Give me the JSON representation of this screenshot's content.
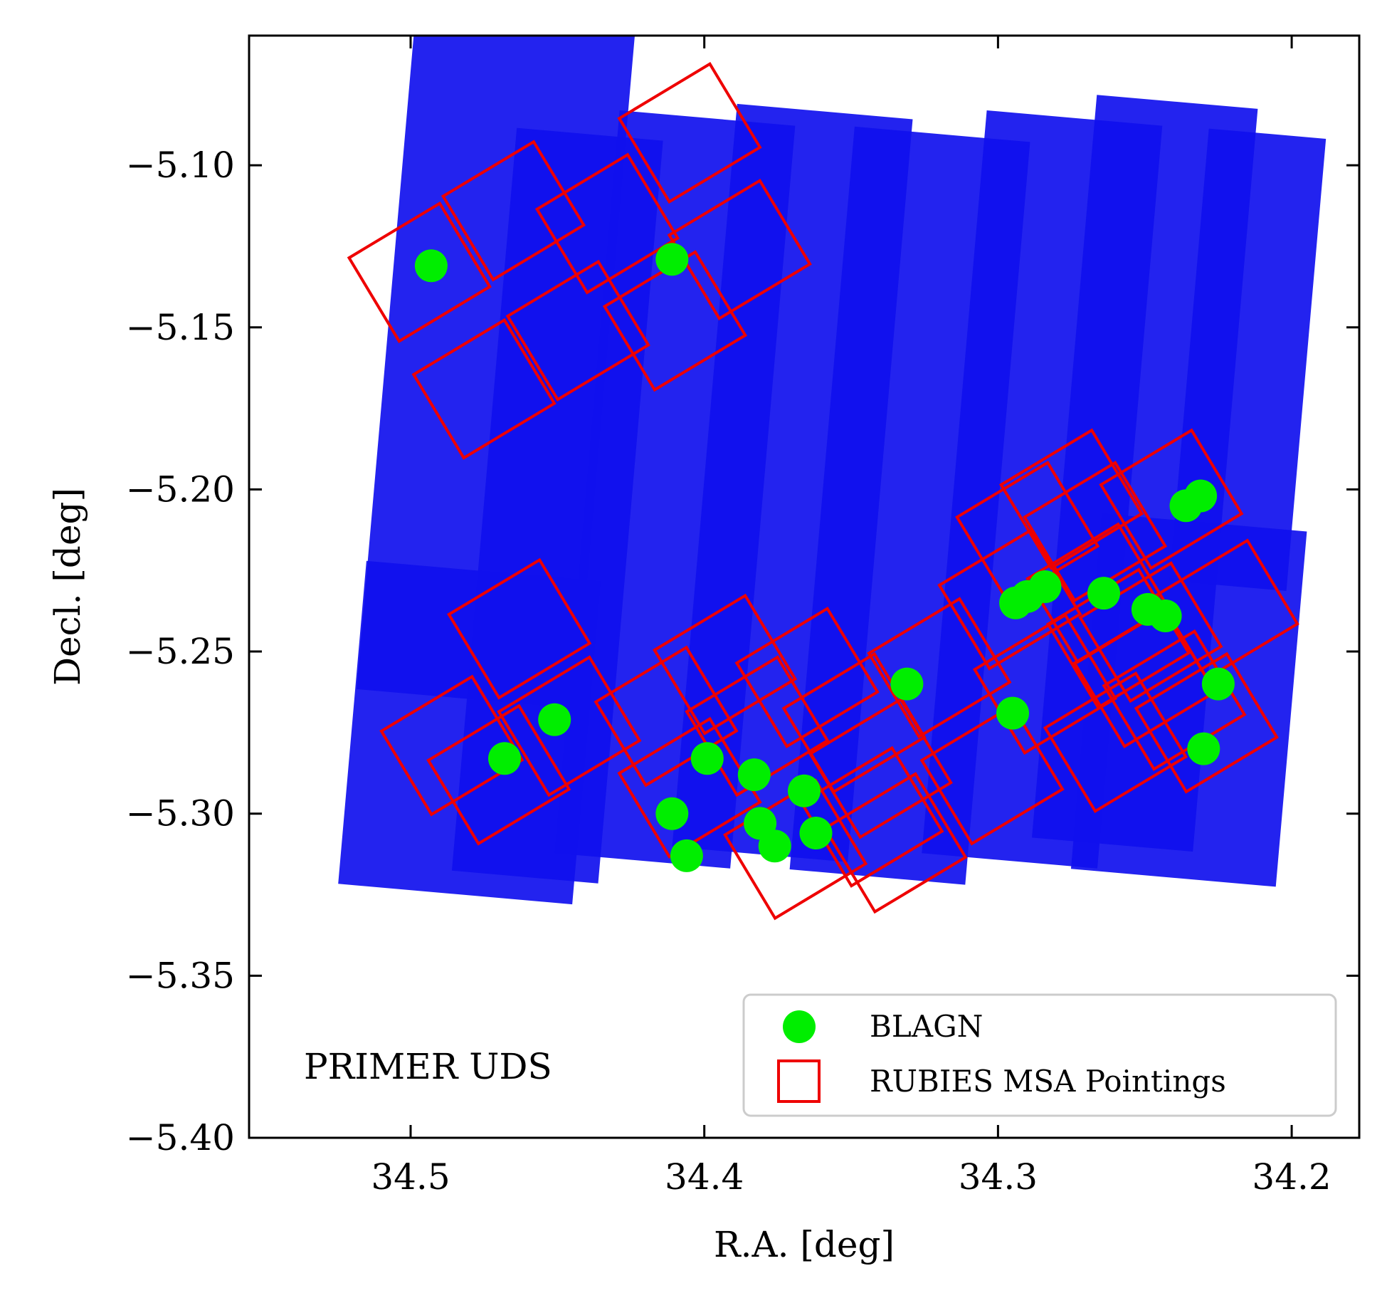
{
  "chart_data": {
    "type": "scatter",
    "xlabel": "R.A. [deg]",
    "ylabel": "Decl. [deg]",
    "xlim": [
      34.555,
      34.177
    ],
    "ylim": [
      -5.4,
      -5.06
    ],
    "x_ticks": [
      34.5,
      34.4,
      34.3,
      34.2
    ],
    "x_tick_labels": [
      "34.5",
      "34.4",
      "34.3",
      "34.2"
    ],
    "y_ticks": [
      -5.1,
      -5.15,
      -5.2,
      -5.25,
      -5.3,
      -5.35,
      -5.4
    ],
    "y_tick_labels": [
      "−5.10",
      "−5.15",
      "−5.20",
      "−5.25",
      "−5.30",
      "−5.35",
      "−5.40"
    ],
    "grid": false,
    "annotation": "PRIMER UDS",
    "legend": {
      "placement": "lower-right",
      "entries": [
        {
          "label": "BLAGN",
          "marker": "circle",
          "color": "#00ee00"
        },
        {
          "label": "RUBIES MSA Pointings",
          "marker": "square-outline",
          "color": "#ee0000"
        }
      ]
    },
    "colors": {
      "background_sources": "#1010ee",
      "blagn": "#00ee00",
      "pointings": "#ee0000"
    },
    "series": [
      {
        "name": "BLAGN",
        "points": [
          [
            34.493,
            -5.131
          ],
          [
            34.411,
            -5.129
          ],
          [
            34.468,
            -5.283
          ],
          [
            34.451,
            -5.271
          ],
          [
            34.399,
            -5.283
          ],
          [
            34.383,
            -5.288
          ],
          [
            34.366,
            -5.293
          ],
          [
            34.411,
            -5.3
          ],
          [
            34.406,
            -5.313
          ],
          [
            34.381,
            -5.303
          ],
          [
            34.376,
            -5.31
          ],
          [
            34.362,
            -5.306
          ],
          [
            34.331,
            -5.26
          ],
          [
            34.295,
            -5.269
          ],
          [
            34.294,
            -5.235
          ],
          [
            34.29,
            -5.233
          ],
          [
            34.284,
            -5.23
          ],
          [
            34.264,
            -5.232
          ],
          [
            34.249,
            -5.237
          ],
          [
            34.243,
            -5.239
          ],
          [
            34.236,
            -5.205
          ],
          [
            34.231,
            -5.202
          ],
          [
            34.225,
            -5.26
          ],
          [
            34.23,
            -5.28
          ]
        ]
      },
      {
        "name": "RUBIES MSA Pointings",
        "centers": [
          [
            34.497,
            -5.133
          ],
          [
            34.475,
            -5.169
          ],
          [
            34.465,
            -5.114
          ],
          [
            34.443,
            -5.151
          ],
          [
            34.433,
            -5.118
          ],
          [
            34.41,
            -5.148
          ],
          [
            34.405,
            -5.09
          ],
          [
            34.388,
            -5.126
          ],
          [
            34.463,
            -5.243
          ],
          [
            34.486,
            -5.279
          ],
          [
            34.446,
            -5.273
          ],
          [
            34.47,
            -5.288
          ],
          [
            34.413,
            -5.27
          ],
          [
            34.393,
            -5.254
          ],
          [
            34.405,
            -5.292
          ],
          [
            34.382,
            -5.273
          ],
          [
            34.369,
            -5.311
          ],
          [
            34.365,
            -5.258
          ],
          [
            34.349,
            -5.272
          ],
          [
            34.34,
            -5.286
          ],
          [
            34.343,
            -5.301
          ],
          [
            34.335,
            -5.309
          ],
          [
            34.32,
            -5.255
          ],
          [
            34.302,
            -5.288
          ],
          [
            34.296,
            -5.234
          ],
          [
            34.29,
            -5.213
          ],
          [
            34.275,
            -5.203
          ],
          [
            34.267,
            -5.213
          ],
          [
            34.266,
            -5.232
          ],
          [
            34.241,
            -5.203
          ],
          [
            34.284,
            -5.26
          ],
          [
            34.259,
            -5.246
          ],
          [
            34.25,
            -5.258
          ],
          [
            34.24,
            -5.265
          ],
          [
            34.222,
            -5.237
          ],
          [
            34.248,
            -5.244
          ],
          [
            34.26,
            -5.278
          ],
          [
            34.229,
            -5.272
          ]
        ],
        "size_deg": [
          0.036,
          0.03
        ],
        "rotation_deg": -31
      }
    ],
    "footprint_tiles": [
      {
        "center": [
          34.47,
          -5.15
        ],
        "size": [
          0.075,
          0.23
        ],
        "rotation_deg": 5
      },
      {
        "center": [
          34.45,
          -5.205
        ],
        "size": [
          0.05,
          0.23
        ],
        "rotation_deg": 5
      },
      {
        "center": [
          34.41,
          -5.2
        ],
        "size": [
          0.06,
          0.23
        ],
        "rotation_deg": 5
      },
      {
        "center": [
          34.37,
          -5.198
        ],
        "size": [
          0.06,
          0.23
        ],
        "rotation_deg": 5
      },
      {
        "center": [
          34.33,
          -5.205
        ],
        "size": [
          0.06,
          0.23
        ],
        "rotation_deg": 5
      },
      {
        "center": [
          34.285,
          -5.2
        ],
        "size": [
          0.06,
          0.23
        ],
        "rotation_deg": 5
      },
      {
        "center": [
          34.25,
          -5.195
        ],
        "size": [
          0.055,
          0.23
        ],
        "rotation_deg": 5
      },
      {
        "center": [
          34.215,
          -5.16
        ],
        "size": [
          0.04,
          0.14
        ],
        "rotation_deg": 5
      },
      {
        "center": [
          34.48,
          -5.275
        ],
        "size": [
          0.08,
          0.1
        ],
        "rotation_deg": 5
      },
      {
        "center": [
          34.235,
          -5.265
        ],
        "size": [
          0.07,
          0.11
        ],
        "rotation_deg": 5
      }
    ]
  }
}
